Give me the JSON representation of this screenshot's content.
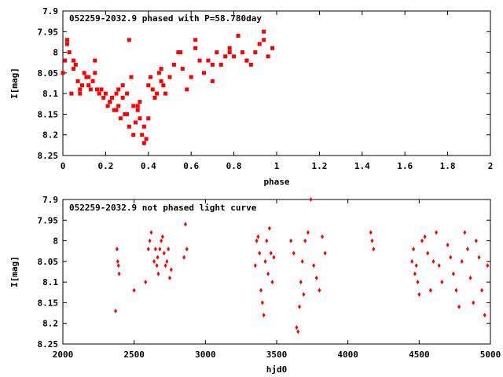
{
  "chart_data": [
    {
      "type": "scatter",
      "title": "052259-2032.9 phased with P=58.780day",
      "xlabel": "phase",
      "ylabel": "I[mag]",
      "xlim": [
        0,
        2
      ],
      "ylim": [
        7.9,
        8.25
      ],
      "y_inverted": true,
      "x_ticks": [
        0,
        0.2,
        0.4,
        0.6,
        0.8,
        1,
        1.2,
        1.4,
        1.6,
        1.8,
        2
      ],
      "y_ticks": [
        7.9,
        7.95,
        8,
        8.05,
        8.1,
        8.15,
        8.2,
        8.25
      ],
      "marker": "filled-square",
      "color": "#ff0000",
      "grid": false,
      "legend": "none",
      "series": [
        {
          "x": [
            0.0,
            0.01,
            0.02,
            0.03,
            0.04,
            0.05,
            0.06,
            0.07,
            0.08,
            0.09,
            0.1,
            0.11,
            0.12,
            0.13,
            0.14,
            0.15,
            0.16,
            0.17,
            0.18,
            0.19,
            0.2,
            0.21,
            0.22,
            0.23,
            0.24,
            0.25,
            0.26,
            0.27,
            0.28,
            0.29,
            0.3,
            0.31,
            0.32,
            0.33,
            0.34,
            0.35,
            0.36,
            0.37,
            0.38,
            0.39,
            0.4,
            0.41,
            0.42,
            0.43,
            0.44,
            0.45,
            0.46,
            0.47,
            0.48,
            0.5,
            0.52,
            0.54,
            0.56,
            0.58,
            0.6,
            0.62,
            0.64,
            0.66,
            0.68,
            0.7,
            0.72,
            0.74,
            0.76,
            0.78,
            0.8,
            0.82,
            0.84,
            0.86,
            0.88,
            0.9,
            0.92,
            0.94,
            0.96,
            0.98,
            0.02,
            0.05,
            0.08,
            0.12,
            0.15,
            0.22,
            0.26,
            0.3,
            0.33,
            0.36,
            0.4,
            0.46,
            0.55,
            0.62,
            0.7,
            0.78,
            0.86,
            0.94,
            0.25,
            0.28,
            0.31,
            0.35,
            0.38
          ],
          "y": [
            8.05,
            8.02,
            7.98,
            8.0,
            8.1,
            8.02,
            8.03,
            8.07,
            8.1,
            8.08,
            8.05,
            8.06,
            8.08,
            8.09,
            8.07,
            8.02,
            8.09,
            8.1,
            8.09,
            8.11,
            8.1,
            8.13,
            8.12,
            8.11,
            8.14,
            8.1,
            8.13,
            8.16,
            8.08,
            8.15,
            8.1,
            7.97,
            8.06,
            8.13,
            8.17,
            8.14,
            8.12,
            8.2,
            8.18,
            8.21,
            8.16,
            8.06,
            8.09,
            8.11,
            8.1,
            8.05,
            8.07,
            8.08,
            8.1,
            8.06,
            8.03,
            8.0,
            8.04,
            8.09,
            8.06,
            7.97,
            8.02,
            8.05,
            8.02,
            8.07,
            8.0,
            8.03,
            8.01,
            7.99,
            8.01,
            7.96,
            8.0,
            8.02,
            8.03,
            8.0,
            7.98,
            7.95,
            8.01,
            7.99,
            7.97,
            8.04,
            8.09,
            8.06,
            8.05,
            8.12,
            8.09,
            8.15,
            8.2,
            8.16,
            8.08,
            8.04,
            8.0,
            7.99,
            8.03,
            8.0,
            8.02,
            7.97,
            8.14,
            8.11,
            8.18,
            8.13,
            8.22
          ]
        }
      ]
    },
    {
      "type": "scatter",
      "title": "052259-2032.9 not phased light curve",
      "xlabel": "hjd0",
      "ylabel": "I[mag]",
      "xlim": [
        2000,
        5000
      ],
      "ylim": [
        7.9,
        8.25
      ],
      "y_inverted": true,
      "x_ticks": [
        2000,
        2500,
        3000,
        3500,
        4000,
        4500,
        5000
      ],
      "y_ticks": [
        7.9,
        7.95,
        8,
        8.05,
        8.1,
        8.15,
        8.2,
        8.25
      ],
      "marker": "diamond",
      "color": "#ff0000",
      "grid": false,
      "legend": "none",
      "series": [
        {
          "x": [
            2370,
            2380,
            2385,
            2390,
            2395,
            2500,
            2580,
            2600,
            2610,
            2620,
            2640,
            2650,
            2660,
            2665,
            2670,
            2680,
            2690,
            2700,
            2710,
            2720,
            2730,
            2740,
            2750,
            2760,
            2850,
            2860,
            2870,
            3350,
            3360,
            3370,
            3380,
            3390,
            3400,
            3410,
            3420,
            3430,
            3440,
            3450,
            3460,
            3470,
            3480,
            3600,
            3620,
            3640,
            3650,
            3660,
            3670,
            3680,
            3690,
            3700,
            3720,
            3740,
            3760,
            3780,
            3800,
            3820,
            3840,
            4160,
            4170,
            4180,
            4450,
            4460,
            4470,
            4480,
            4490,
            4500,
            4520,
            4540,
            4560,
            4580,
            4600,
            4620,
            4640,
            4660,
            4700,
            4720,
            4740,
            4760,
            4780,
            4800,
            4820,
            4840,
            4860,
            4880,
            4900,
            4920,
            4940,
            4960,
            4980
          ],
          "y": [
            8.17,
            8.02,
            8.05,
            8.06,
            8.08,
            8.12,
            8.1,
            8.02,
            8.0,
            7.98,
            8.05,
            8.02,
            8.06,
            8.04,
            8.08,
            8.02,
            8.0,
            7.99,
            8.03,
            8.06,
            8.05,
            8.02,
            8.09,
            8.07,
            8.04,
            7.96,
            8.02,
            8.06,
            8.0,
            7.99,
            8.03,
            8.12,
            8.15,
            8.18,
            8.05,
            8.0,
            8.08,
            7.97,
            8.03,
            8.1,
            8.04,
            8.0,
            8.03,
            8.21,
            8.22,
            8.16,
            8.1,
            8.05,
            8.13,
            8.0,
            7.98,
            7.9,
            8.06,
            8.09,
            8.12,
            7.99,
            8.03,
            7.98,
            8.0,
            8.02,
            8.05,
            8.02,
            8.08,
            8.06,
            8.1,
            8.13,
            8.0,
            7.99,
            8.03,
            8.12,
            8.05,
            7.98,
            8.06,
            8.1,
            8.01,
            8.04,
            8.08,
            8.12,
            8.16,
            8.05,
            7.98,
            8.02,
            8.09,
            8.15,
            8.0,
            8.04,
            8.12,
            8.18,
            8.06
          ]
        }
      ]
    }
  ]
}
